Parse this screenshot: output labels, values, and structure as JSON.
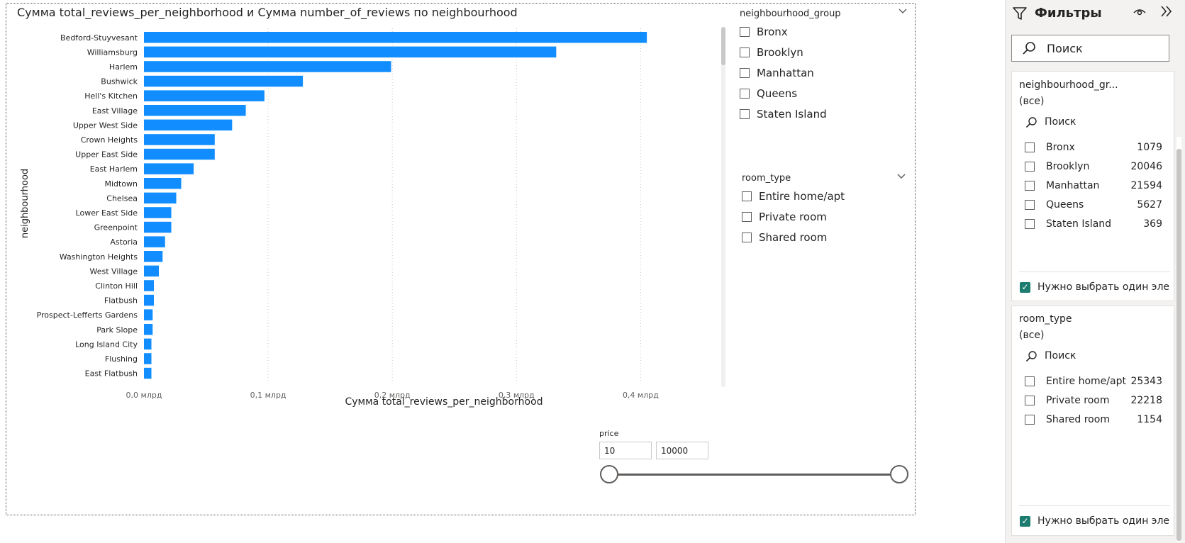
{
  "visual": {
    "title": "Сумма total_reviews_per_neighborhood и Сумма number_of_reviews по neighbourhood"
  },
  "chart_data": {
    "type": "bar",
    "orientation": "horizontal",
    "title": "Сумма total_reviews_per_neighborhood и Сумма number_of_reviews по neighbourhood",
    "xlabel": "Сумма total_reviews_per_neighborhood",
    "ylabel": "neighbourhood",
    "bar_color": "#118dff",
    "xlim": [
      0,
      0.45
    ],
    "x_unit": "млрд",
    "x_ticks": [
      0,
      0.1,
      0.2,
      0.3,
      0.4
    ],
    "x_tick_labels": [
      "0,0 млрд",
      "0,1 млрд",
      "0,2 млрд",
      "0,3 млрд",
      "0,4 млрд"
    ],
    "grid": true,
    "categories": [
      "Bedford-Stuyvesant",
      "Williamsburg",
      "Harlem",
      "Bushwick",
      "Hell's Kitchen",
      "East Village",
      "Upper West Side",
      "Crown Heights",
      "Upper East Side",
      "East Harlem",
      "Midtown",
      "Chelsea",
      "Lower East Side",
      "Greenpoint",
      "Astoria",
      "Washington Heights",
      "West Village",
      "Clinton Hill",
      "Flatbush",
      "Prospect-Lefferts Gardens",
      "Park Slope",
      "Long Island City",
      "Flushing",
      "East Flatbush"
    ],
    "values": [
      0.405,
      0.332,
      0.199,
      0.128,
      0.097,
      0.082,
      0.071,
      0.057,
      0.057,
      0.04,
      0.03,
      0.026,
      0.022,
      0.022,
      0.017,
      0.015,
      0.012,
      0.008,
      0.008,
      0.007,
      0.007,
      0.006,
      0.006,
      0.006
    ]
  },
  "slicer_group": {
    "title": "neighbourhood_group",
    "items": [
      "Bronx",
      "Brooklyn",
      "Manhattan",
      "Queens",
      "Staten Island"
    ]
  },
  "slicer_room": {
    "title": "room_type",
    "items": [
      "Entire home/apt",
      "Private room",
      "Shared room"
    ]
  },
  "price_slicer": {
    "label": "price",
    "min": "10",
    "max": "10000"
  },
  "filters": {
    "title": "Фильтры",
    "search_placeholder": "Поиск",
    "cards": [
      {
        "title": "neighbourhood_gr...",
        "subtitle": "(все)",
        "search": "Поиск",
        "items": [
          {
            "label": "Bronx",
            "count": "1079"
          },
          {
            "label": "Brooklyn",
            "count": "20046"
          },
          {
            "label": "Manhattan",
            "count": "21594"
          },
          {
            "label": "Queens",
            "count": "5627"
          },
          {
            "label": "Staten Island",
            "count": "369"
          }
        ],
        "require_label": "Нужно выбрать один элемент"
      },
      {
        "title": "room_type",
        "subtitle": "(все)",
        "search": "Поиск",
        "items": [
          {
            "label": "Entire home/apt",
            "count": "25343"
          },
          {
            "label": "Private room",
            "count": "22218"
          },
          {
            "label": "Shared room",
            "count": "1154"
          }
        ],
        "require_label": "Нужно выбрать один элемент"
      }
    ]
  },
  "icons": {
    "funnel": "filter-funnel-icon",
    "eye": "eye-icon",
    "collapse": "double-chevron-right-icon",
    "search": "search-icon",
    "chevron": "chevron-down-icon",
    "check": "checkmark-icon"
  },
  "colors": {
    "accent": "#118dff",
    "check_fill": "#1b7c6f"
  }
}
